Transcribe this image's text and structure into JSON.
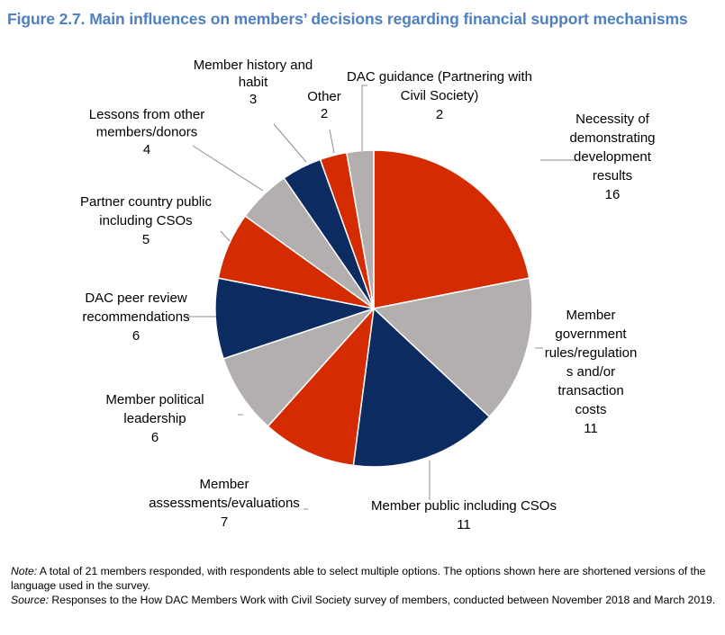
{
  "figure": {
    "title": "Figure 2.7. Main influences on members’ decisions regarding financial support mechanisms"
  },
  "chart_data": {
    "type": "pie",
    "start": "top, clockwise",
    "slices": [
      {
        "label": "Necessity of demonstrating development results",
        "label_lines": [
          "Necessity of",
          "demonstrating",
          "development",
          "results"
        ],
        "value": 16,
        "color": "#d52b00"
      },
      {
        "label": "Member government rules/regulations and/or transaction costs",
        "label_lines": [
          "Member",
          "government",
          "rules/regulation",
          "s and/or",
          "transaction",
          "costs"
        ],
        "value": 11,
        "color": "#b3afae"
      },
      {
        "label": "Member public including CSOs",
        "label_lines": [
          "Member public including CSOs"
        ],
        "value": 11,
        "color": "#0b2b61"
      },
      {
        "label": "Member assessments/evaluations",
        "label_lines": [
          "Member",
          "assessments/evaluations"
        ],
        "value": 7,
        "color": "#d52b00"
      },
      {
        "label": "Member political leadership",
        "label_lines": [
          "Member political",
          "leadership"
        ],
        "value": 6,
        "color": "#b3afae"
      },
      {
        "label": "DAC peer review recommendations",
        "label_lines": [
          "DAC peer review",
          "recommendations"
        ],
        "value": 6,
        "color": "#0b2b61"
      },
      {
        "label": "Partner country public including CSOs",
        "label_lines": [
          "Partner country public",
          "including CSOs"
        ],
        "value": 5,
        "color": "#d52b00"
      },
      {
        "label": "Lessons from other members/donors",
        "label_lines": [
          "Lessons from other",
          "members/donors"
        ],
        "value": 4,
        "color": "#b3afae"
      },
      {
        "label": "Member history and habit",
        "label_lines": [
          "Member history and",
          "habit"
        ],
        "value": 3,
        "color": "#0b2b61"
      },
      {
        "label": "Other",
        "label_lines": [
          "Other"
        ],
        "value": 2,
        "color": "#d52b00"
      },
      {
        "label": "DAC guidance (Partnering with Civil Society)",
        "label_lines": [
          "DAC guidance (Partnering with",
          "Civil Society)"
        ],
        "value": 2,
        "color": "#b3afae"
      }
    ]
  },
  "notes": {
    "note_prefix": "Note:",
    "note_text": " A total of 21 members responded, with respondents able to select multiple options. The options shown here are shortened versions of the language used in the survey.",
    "source_prefix": "Source:",
    "source_text": " Responses to the How DAC Members Work with Civil Society survey of members, conducted between November 2018 and March 2019."
  }
}
